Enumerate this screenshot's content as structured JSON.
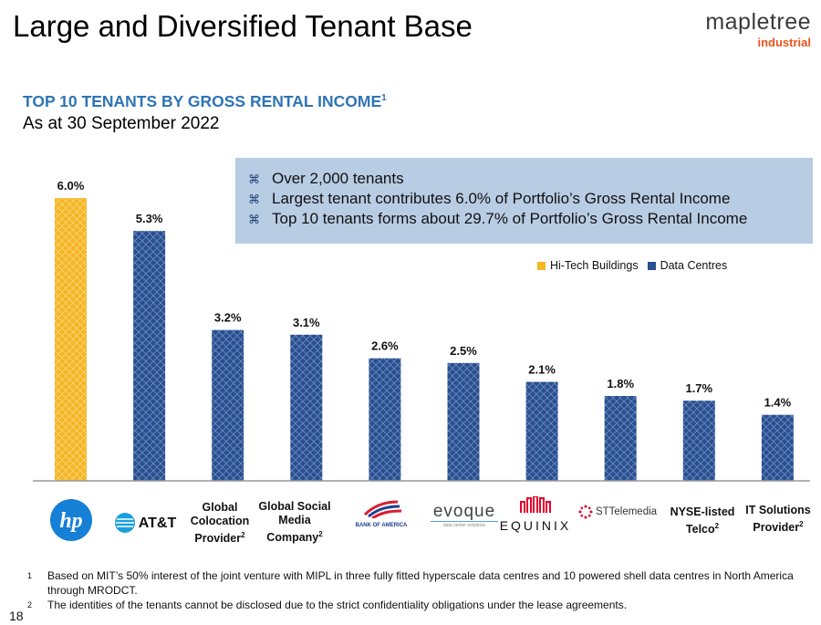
{
  "page": {
    "title": "Large and Diversified Tenant Base",
    "number": "18"
  },
  "logo": {
    "word": "mapletree",
    "sub": "industrial"
  },
  "callout": {
    "items": [
      "Over 2,000 tenants",
      "Largest tenant contributes 6.0% of Portfolio’s Gross Rental Income",
      "Top 10 tenants forms about 29.7% of Portfolio’s Gross Rental Income"
    ]
  },
  "tenants": {
    "hp": "hp",
    "att": "AT&T",
    "global_colocation": "Global Colocation Provider",
    "global_social": "Global Social Media Company",
    "bofa": "BANK OF AMERICA",
    "evoque": "evoque",
    "evoque_tag": "data center solutions",
    "equinix": "EQUINIX",
    "sttelemedia": "STTelemedia",
    "nyse_telco": "NYSE-listed Telco",
    "it_solutions": "IT Solutions Provider",
    "footnote_mark": "2"
  },
  "footnotes": [
    {
      "mark": "1",
      "text": "Based on MIT’s 50% interest of the joint venture with MIPL in three fully fitted hyperscale data centres and 10 powered shell data centres in North America through MRODCT."
    },
    {
      "mark": "2",
      "text": "The identities of the tenants cannot be disclosed due to the strict confidentiality obligations under the lease agreements."
    }
  ],
  "colors": {
    "hitech": "#f5b525",
    "datacentre": "#2a4f8f",
    "title_blue": "#2e74b5",
    "callout_bg": "#b8cce4"
  },
  "chart_data": {
    "type": "bar",
    "title": "TOP 10 TENANTS BY GROSS RENTAL INCOME",
    "title_footnote": "1",
    "subtitle": "As at 30 September 2022",
    "categories": [
      "hp",
      "AT&T",
      "Global Colocation Provider",
      "Global Social Media Company",
      "Bank of America",
      "Evoque",
      "Equinix",
      "STTelemedia",
      "NYSE-listed Telco",
      "IT Solutions Provider"
    ],
    "values": [
      6.0,
      5.3,
      3.2,
      3.1,
      2.6,
      2.5,
      2.1,
      1.8,
      1.7,
      1.4
    ],
    "labels": [
      "6.0%",
      "5.3%",
      "3.2%",
      "3.1%",
      "2.6%",
      "2.5%",
      "2.1%",
      "1.8%",
      "1.7%",
      "1.4%"
    ],
    "series_of_bar": [
      "Hi-Tech Buildings",
      "Data Centres",
      "Data Centres",
      "Data Centres",
      "Data Centres",
      "Data Centres",
      "Data Centres",
      "Data Centres",
      "Data Centres",
      "Data Centres"
    ],
    "legend": [
      {
        "name": "Hi-Tech Buildings",
        "color": "#f5b525"
      },
      {
        "name": "Data Centres",
        "color": "#2a4f8f"
      }
    ],
    "legend_position": "top-right",
    "ylim": [
      0,
      6.0
    ],
    "grid": false,
    "xlabel": "",
    "ylabel": ""
  }
}
